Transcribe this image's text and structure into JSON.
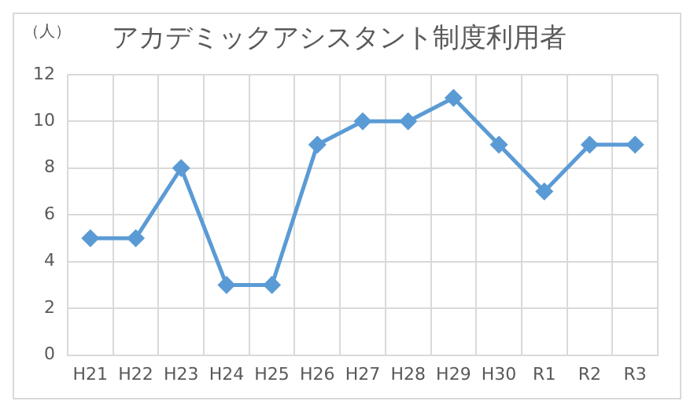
{
  "chart_data": {
    "type": "line",
    "title": "アカデミックアシスタント制度利用者",
    "ylabel": "（人）",
    "categories": [
      "H21",
      "H22",
      "H23",
      "H24",
      "H25",
      "H26",
      "H27",
      "H28",
      "H29",
      "H30",
      "R1",
      "R2",
      "R3"
    ],
    "series": [
      {
        "color": "#5b9bd5",
        "values": [
          5,
          5,
          8,
          3,
          3,
          9,
          10,
          10,
          11,
          9,
          7,
          9,
          9
        ]
      }
    ],
    "ylim": [
      0,
      12
    ],
    "yticks": [
      0,
      2,
      4,
      6,
      8,
      10,
      12
    ],
    "grid": true,
    "legend": false,
    "marker": "diamond",
    "line_style": "solid"
  }
}
